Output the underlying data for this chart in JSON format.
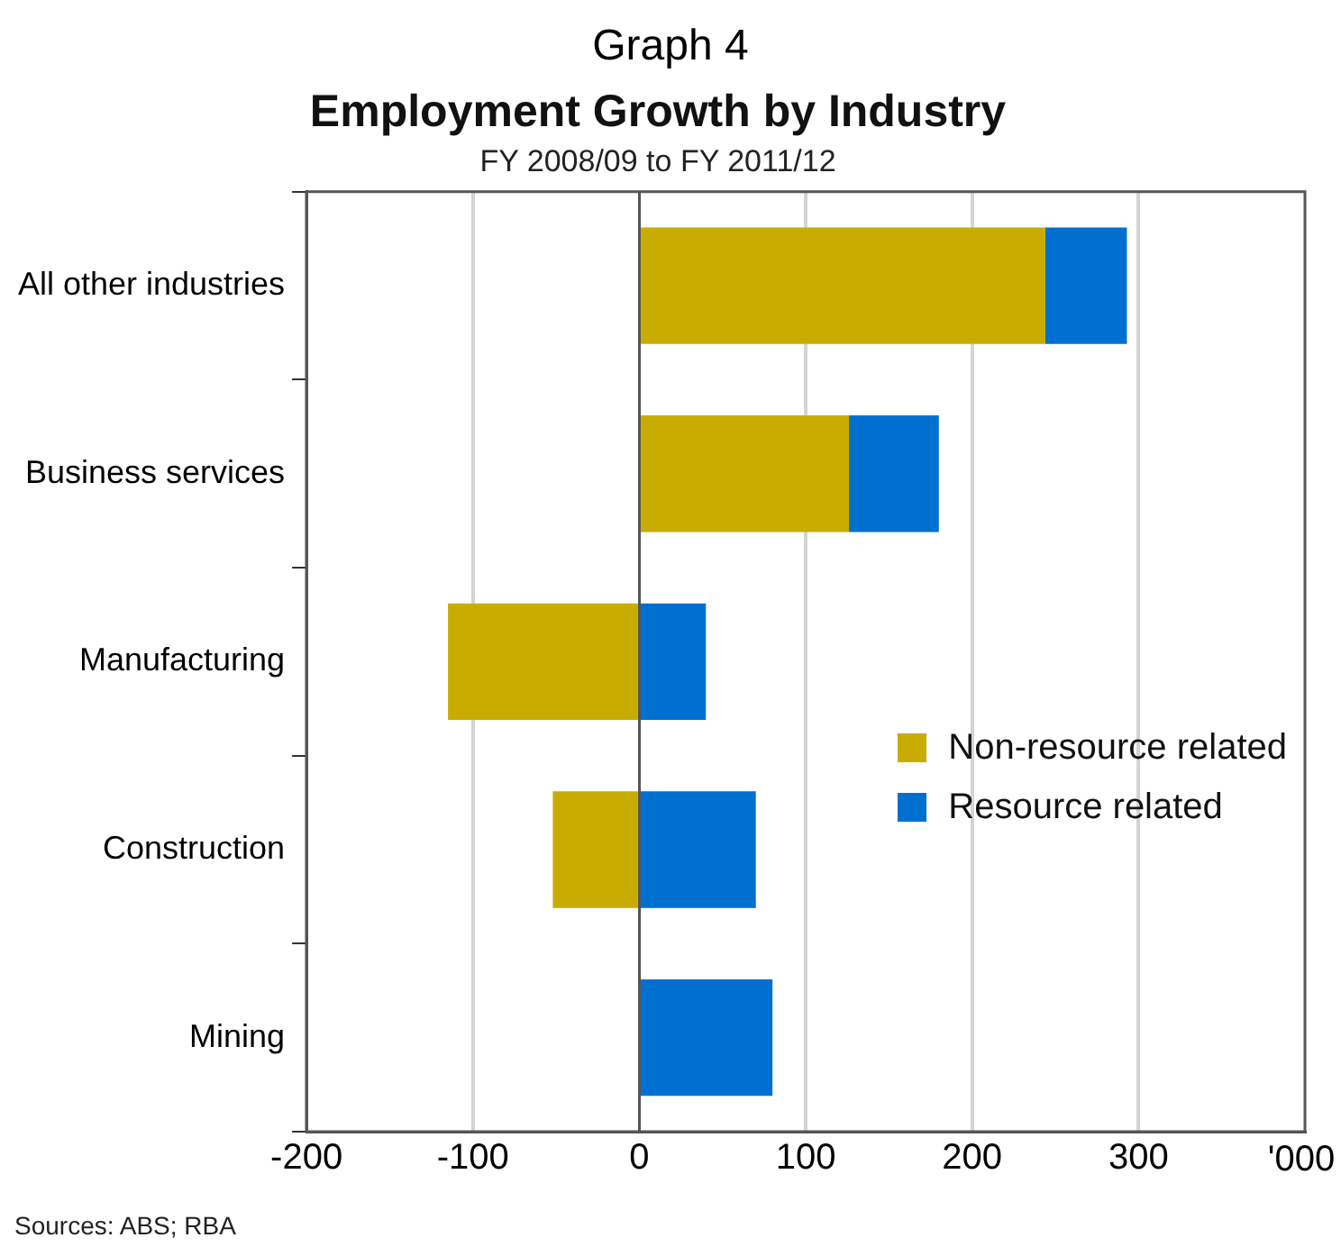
{
  "chart_data": {
    "type": "bar",
    "orientation": "horizontal",
    "stacked": true,
    "title": "Employment Growth by Industry",
    "subtitle": "FY 2008/09 to FY 2011/12",
    "annotations": [
      "Graph 4",
      "Sources: ABS; RBA"
    ],
    "categories": [
      "All other industries",
      "Business services",
      "Manufacturing",
      "Construction",
      "Mining"
    ],
    "series": [
      {
        "name": "Non-resource related",
        "color": "#c8ac00",
        "values": [
          244,
          126,
          -115,
          -52,
          0
        ]
      },
      {
        "name": "Resource related",
        "color": "#0070d0",
        "values": [
          49,
          54,
          40,
          70,
          80
        ]
      }
    ],
    "xlabel": "'000",
    "xlim": [
      -200,
      400
    ],
    "xticks": [
      -200,
      -100,
      0,
      100,
      200,
      300
    ],
    "grid": "x",
    "legend": "right"
  }
}
